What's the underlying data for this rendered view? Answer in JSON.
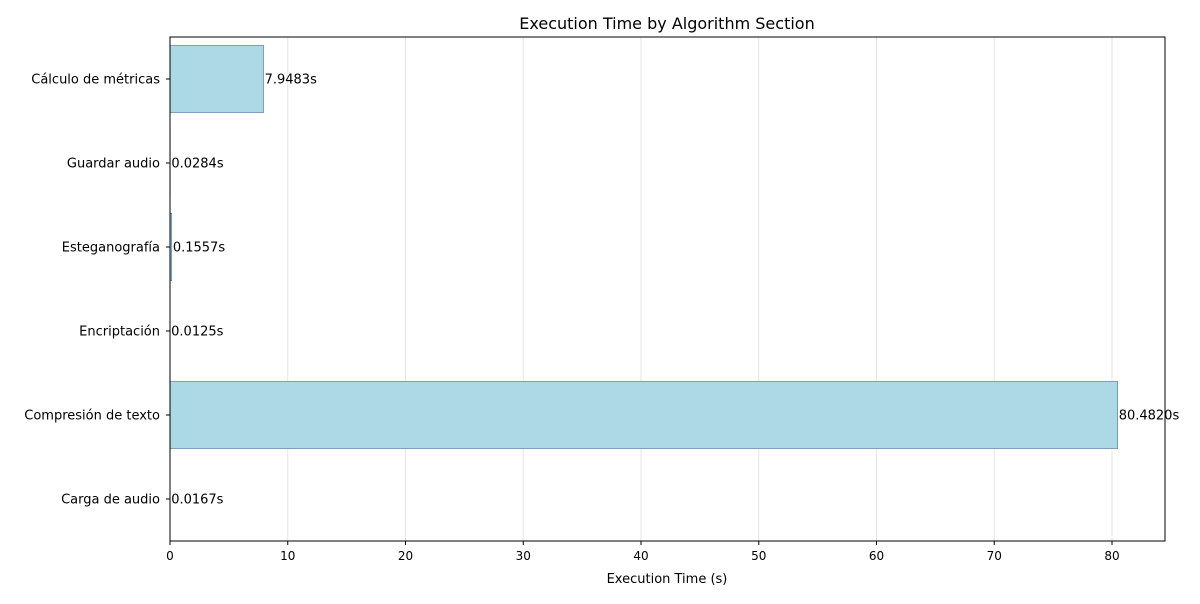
{
  "chart_data": {
    "type": "bar",
    "orientation": "horizontal",
    "title": "Execution Time by Algorithm Section",
    "xlabel": "Execution Time (s)",
    "ylabel": "",
    "categories": [
      "Carga de audio",
      "Compresión de texto",
      "Encriptación",
      "Esteganografía",
      "Guardar audio",
      "Cálculo de métricas"
    ],
    "values": [
      0.0167,
      80.482,
      0.0125,
      0.1557,
      0.0284,
      7.9483
    ],
    "data_labels": [
      "0.0167s",
      "80.4820s",
      "0.0125s",
      "0.1557s",
      "0.0284s",
      "7.9483s"
    ],
    "xlim": [
      0,
      84.5
    ],
    "xticks": [
      0,
      10,
      20,
      30,
      40,
      50,
      60,
      70,
      80
    ],
    "grid": "x",
    "bar_color": "#add8e6",
    "bar_edge_color": "#1f3b6f"
  }
}
